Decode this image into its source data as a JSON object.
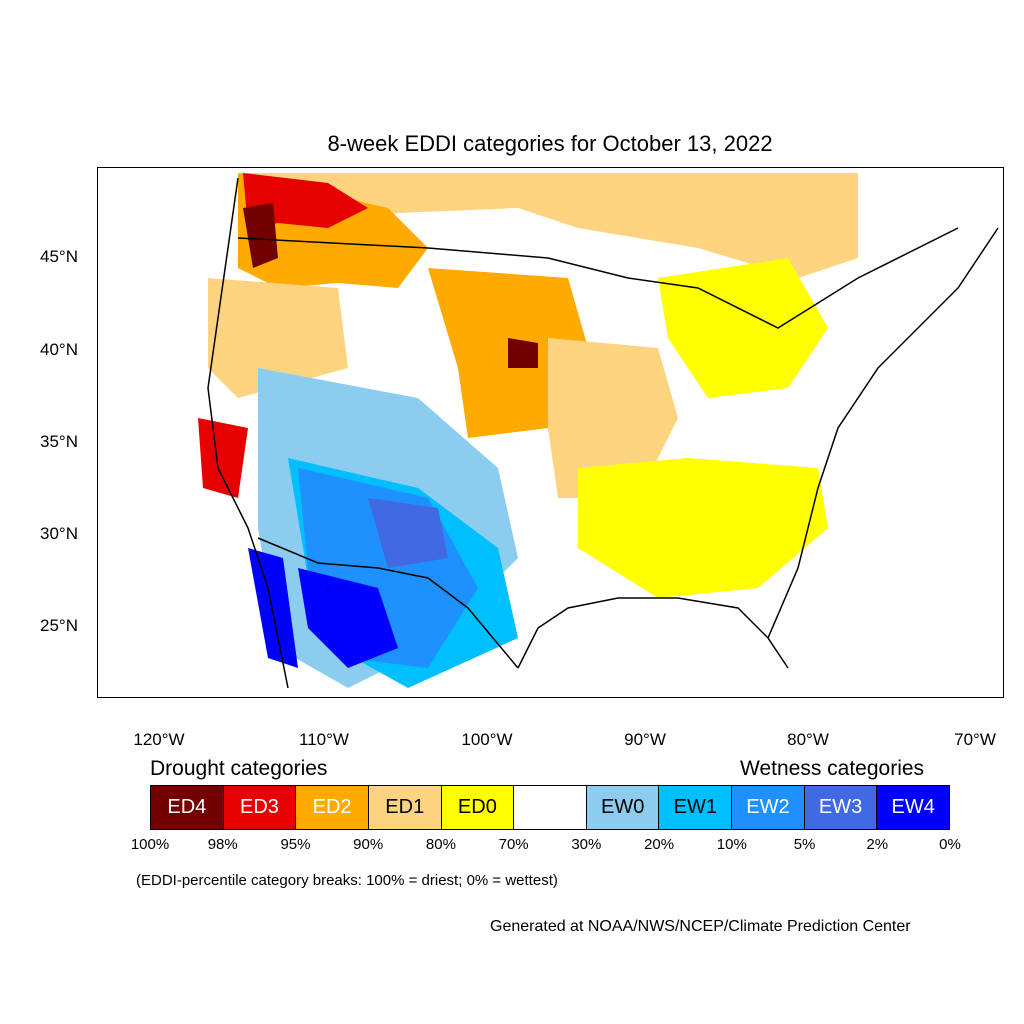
{
  "title": "8-week EDDI categories for October 13, 2022",
  "lat_labels": [
    "45°N",
    "40°N",
    "35°N",
    "30°N",
    "25°N"
  ],
  "lon_labels": [
    "120°W",
    "110°W",
    "100°W",
    "90°W",
    "80°W",
    "70°W"
  ],
  "drought_heading": "Drought categories",
  "wetness_heading": "Wetness categories",
  "categories": [
    {
      "label": "ED4",
      "color": "#730000",
      "text": "#ffffff"
    },
    {
      "label": "ED3",
      "color": "#e60000",
      "text": "#ffffff"
    },
    {
      "label": "ED2",
      "color": "#ffaa00",
      "text": "#ffffff"
    },
    {
      "label": "ED1",
      "color": "#fcd37f",
      "text": "#000000"
    },
    {
      "label": "ED0",
      "color": "#ffff00",
      "text": "#000000"
    },
    {
      "label": "",
      "color": "#ffffff",
      "text": "#000000"
    },
    {
      "label": "EW0",
      "color": "#8ccdef",
      "text": "#000000"
    },
    {
      "label": "EW1",
      "color": "#00bfff",
      "text": "#000000"
    },
    {
      "label": "EW2",
      "color": "#1e90ff",
      "text": "#ffffff"
    },
    {
      "label": "EW3",
      "color": "#4169e1",
      "text": "#ffffff"
    },
    {
      "label": "EW4",
      "color": "#0000ff",
      "text": "#ffffff"
    }
  ],
  "percent_breaks": [
    "100%",
    "98%",
    "95%",
    "90%",
    "80%",
    "70%",
    "30%",
    "20%",
    "10%",
    "5%",
    "2%",
    "0%"
  ],
  "note": "(EDDI-percentile category breaks: 100% = driest; 0% = wettest)",
  "credit": "Generated at NOAA/NWS/NCEP/Climate Prediction Center"
}
